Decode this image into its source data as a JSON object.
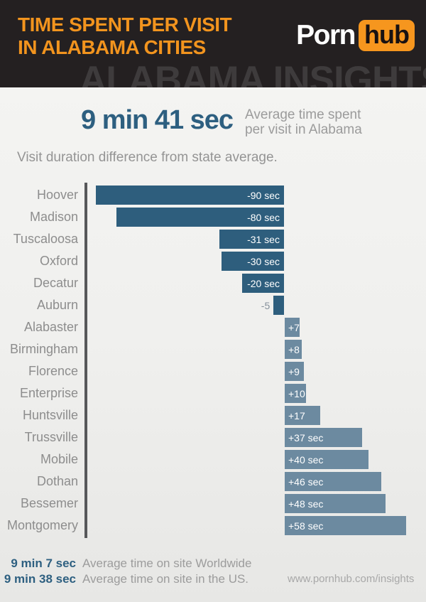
{
  "header": {
    "title_line1": "TIME SPENT PER VISIT",
    "title_line2": "IN ALABAMA CITIES",
    "watermark": "ALABAMA INSIGHTS",
    "logo": {
      "part1": "Porn",
      "part2": "hub"
    },
    "colors": {
      "background": "#242021",
      "title_orange": "#f2941e",
      "logo_orange": "#f6961e",
      "watermark_gray": "#3e3b3c"
    }
  },
  "stat": {
    "value": "9 min 41 sec",
    "label_line1": "Average time spent",
    "label_line2": "per visit in Alabama"
  },
  "chart_data": {
    "type": "bar",
    "orientation": "horizontal",
    "title": "Visit duration difference from state average.",
    "unit": "seconds vs state average",
    "categories": [
      "Hoover",
      "Madison",
      "Tuscaloosa",
      "Oxford",
      "Decatur",
      "Auburn",
      "Alabaster",
      "Birmingham",
      "Florence",
      "Enterprise",
      "Huntsville",
      "Trussville",
      "Mobile",
      "Dothan",
      "Bessemer",
      "Montgomery"
    ],
    "values": [
      -90,
      -80,
      -31,
      -30,
      -20,
      -5,
      7,
      8,
      9,
      10,
      17,
      37,
      40,
      46,
      48,
      58
    ],
    "display_labels": [
      "-90 sec",
      "-80 sec",
      "-31 sec",
      "-30 sec",
      "-20 sec",
      "-5",
      "+7",
      "+8",
      "+9",
      "+10",
      "+17",
      "+37 sec",
      "+40 sec",
      "+46 sec",
      "+48 sec",
      "+58 sec"
    ],
    "xlim": [
      -95,
      65
    ],
    "grid": false,
    "legend": "none",
    "colors": {
      "negative": "#2e5e7d",
      "positive": "#6c8aa0",
      "axis": "#57585a",
      "category_label": "#8d8d8d",
      "value_label_inside": "#ffffff",
      "value_label_outside": "#85909b"
    }
  },
  "footer": {
    "stats": [
      {
        "value": "9 min 7 sec",
        "label": "Average time on site Worldwide"
      },
      {
        "value": "9 min 38 sec",
        "label": "Average time on site in the US."
      }
    ],
    "url": "www.pornhub.com/insights"
  }
}
